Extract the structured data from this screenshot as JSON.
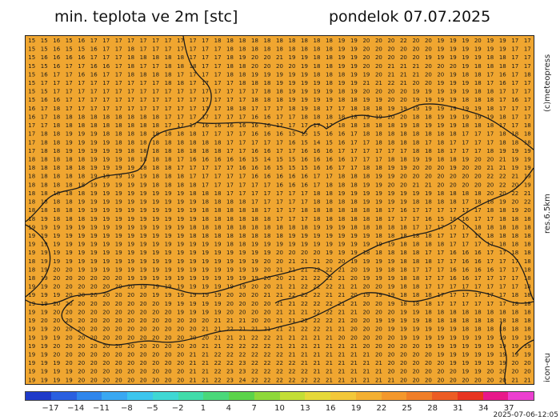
{
  "header": {
    "title_left": "min. teplota ve 2m [stc]",
    "title_right": "pondelok 07.07.2025"
  },
  "side_labels": {
    "credit": "(c)meteopress",
    "resolution": "res.6.5km",
    "model": "icon-eu"
  },
  "timestamp": "2025-07-06-12:05",
  "colors": {
    "map_background": "#f0a630",
    "grid_text": "#1a1a1a",
    "border_line": "#1a1a1a"
  },
  "scale": {
    "ticks": [
      "−17",
      "−14",
      "−11",
      "−8",
      "−5",
      "−2",
      "1",
      "4",
      "7",
      "10",
      "13",
      "16",
      "19",
      "22",
      "25",
      "28",
      "31",
      "34",
      "37"
    ],
    "colors": [
      "#1e3ac9",
      "#2a5fe0",
      "#2f86ec",
      "#39a8f2",
      "#3cc6ee",
      "#3fd8d4",
      "#41dcaa",
      "#4ad87a",
      "#5bd34a",
      "#8ed83a",
      "#c3de36",
      "#e6d93a",
      "#f3c83a",
      "#f4b032",
      "#f4982c",
      "#f07e28",
      "#ec5c24",
      "#e83420",
      "#e8188a",
      "#ec3fd0"
    ]
  },
  "map_grid": [
    "15 15 16 15 16 17 17 17 17 17 17 17 17 17 17 18 18 18 18 18 18 18 18 18 18 19 19 20 20 20 22 20 20 19 19 19 20 19 19 17 17",
    "15 15 16 15 15 16 17 17 18 17 17 17 17 17 17 17 18 18 18 18 18 18 18 18 18 19 19 20 20 20 20 20 20 19 19 19 19 19 19 17 17",
    "15 16 16 16 16 17 17 17 18 18 18 18 18 17 17 17 18 19 20 20 21 19 19 18 18 19 19 20 20 20 20 20 19 19 19 19 19 18 18 17 17",
    "15 15 16 17 17 16 16 17 18 17 17 18 18 18 17 17 18 18 20 20 20 20 19 18 18 19 19 20 20 21 21 21 20 20 20 19 18 18 18 17 17",
    "15 16 17 17 16 16 17 17 18 18 18 18 17 17 17 17 18 18 19 19 19 19 19 18 18 18 19 19 20 21 21 21 20 20 19 18 18 17 16 17 18",
    "15 17 17 17 17 17 17 17 17 17 17 18 18 17 17 17 17 18 18 18 19 19 19 19 18 19 19 21 21 22 21 20 20 19 19 19 18 17 16 17 17",
    "15 15 17 17 17 17 17 17 17 17 17 17 17 17 17 17 17 17 17 18 18 19 19 19 19 18 19 20 20 20 20 19 19 19 19 19 18 18 17 17 17",
    "15 16 16 17 17 17 17 17 17 17 17 17 17 17 17 17 17 17 18 18 18 19 19 19 19 18 18 19 19 20 20 19 19 19 19 18 18 18 17 16 17",
    "16 17 18 17 17 17 17 17 17 17 17 17 17 17 17 17 18 18 17 17 17 18 19 18 17 17 18 18 18 19 19 19 19 19 19 19 19 18 17 17 17",
    "16 17 18 18 18 18 18 18 18 18 18 17 17 17 17 17 17 17 16 16 17 17 18 18 18 18 18 19 19 20 20 18 18 19 19 19 19 19 18 17 17",
    "17 17 18 18 18 18 18 18 18 18 18 17 17 17 16 16 16 16 16 16 17 17 17 17 17 18 18 18 18 18 19 18 19 19 19 18 18 18 17 17 18",
    "17 18 18 19 19 19 18 18 18 18 18 18 18 18 17 17 17 17 16 16 16 15 15 15 16 16 17 18 18 18 18 18 18 18 18 17 17 17 18 18 18",
    "17 18 18 19 19 19 19 18 18 18 18 18 18 18 18 18 17 17 17 17 17 16 15 14 15 16 17 17 18 18 18 18 17 18 17 17 17 17 18 18 18",
    "17 18 18 19 19 19 19 19 18 18 18 18 18 18 18 18 17 17 16 16 17 17 16 16 16 17 17 17 17 17 17 18 18 18 17 17 17 18 19 19 19",
    "18 18 18 18 18 19 19 19 18 18 18 18 17 16 16 16 16 16 15 14 15 15 16 16 16 16 17 17 17 18 18 19 19 18 18 19 20 20 21 19 19",
    "18 18 18 18 18 19 19 19 19 18 18 18 17 17 17 17 17 16 16 16 15 15 15 16 16 17 17 18 18 19 19 20 20 20 19 20 20 21 21 19 19",
    "18 18 18 18 18 19 19 19 19 19 18 18 18 17 17 17 17 17 16 16 16 16 16 17 17 18 18 18 19 19 20 20 20 20 20 20 20 22 22 21 19",
    "18 18 18 18 18 19 19 19 19 19 18 18 18 18 17 17 17 17 17 17 16 16 16 17 18 18 18 19 19 20 20 21 21 20 20 20 20 20 22 20 19",
    "18 18 18 18 18 19 19 19 19 19 19 19 19 18 18 18 17 17 17 17 17 17 17 18 18 19 19 19 19 19 19 19 19 18 18 18 18 20 20 22 21",
    "18 18 18 18 19 19 19 19 19 19 19 19 19 19 18 18 18 18 17 17 17 17 17 18 18 18 18 19 19 19 19 18 18 18 18 17 18 18 19 20 22",
    "18 18 18 18 19 19 19 19 19 19 19 19 19 19 18 18 18 18 18 17 17 17 18 18 18 18 18 18 18 17 16 17 17 17 17 17 17 18 18 19 20",
    "18 19 18 18 18 19 19 19 19 19 19 19 19 19 18 18 18 18 18 18 17 17 17 18 18 18 18 18 18 17 17 17 16 15 16 16 17 17 18 18 18",
    "19 19 19 19 19 19 19 19 19 19 19 19 19 18 18 18 18 18 18 18 18 18 18 19 19 19 18 18 18 18 18 17 17 17 17 17 18 18 18 18 18",
    "19 19 19 19 19 19 19 19 19 19 19 19 19 18 18 18 18 18 18 18 18 19 19 19 19 19 19 19 18 18 18 18 18 17 17 17 17 18 18 18 18",
    "19 19 19 19 19 19 19 19 19 19 19 19 19 19 19 19 18 18 19 19 19 19 19 19 19 19 19 19 19 19 18 18 18 18 17 17 17 17 18 18 18",
    "19 19 19 19 19 19 19 19 19 19 19 19 19 19 19 19 19 19 19 19 20 20 20 20 19 19 19 18 18 18 18 18 17 17 16 16 16 17 17 18 18",
    "18 19 19 19 19 19 19 19 19 19 19 19 19 19 19 19 19 19 19 20 20 21 21 21 20 20 19 19 19 19 18 18 18 17 17 16 16 17 17 17 18",
    "18 19 20 20 19 19 19 19 19 19 19 19 19 19 19 19 19 19 19 20 21 21 21 22 22 21 20 19 19 18 18 17 17 17 16 16 16 16 17 17 18",
    "18 19 20 20 20 20 20 20 19 19 19 19 19 19 19 19 19 19 19 20 20 21 21 22 22 21 20 19 19 19 18 18 17 17 16 16 17 17 17 17 18",
    "19 19 20 20 20 20 20 20 20 19 19 19 19 19 19 19 19 19 20 20 21 21 22 22 22 21 21 20 20 19 18 18 17 17 17 17 17 17 17 17 18",
    "19 19 19 20 20 20 20 20 20 20 19 19 19 19 19 19 20 20 20 21 21 22 22 22 21 21 20 19 19 19 18 18 18 17 17 17 17 17 17 18 18",
    "19 19 20 20 20 20 20 20 20 20 20 19 19 19 19 19 20 20 20 20 21 21 22 22 22 21 21 20 20 19 18 18 18 17 17 17 17 17 17 18 18",
    "19 19 20 20 20 20 20 20 20 20 20 20 19 19 19 19 20 20 20 20 21 21 21 22 22 21 21 20 20 20 19 19 18 18 18 18 18 18 18 18 18",
    "19 20 20 20 20 20 20 20 20 20 20 20 20 20 20 21 21 21 20 20 21 21 22 22 22 21 20 20 19 19 19 19 18 18 18 18 18 18 18 18 18",
    "19 19 20 20 20 20 20 20 20 20 20 20 20 20 21 21 22 21 21 21 21 21 22 22 21 21 20 20 20 19 19 19 19 19 19 18 18 18 18 18 18",
    "19 19 19 20 20 20 20 20 20 20 20 20 20 20 20 21 21 21 22 22 21 21 21 21 21 20 20 20 20 20 19 19 19 19 19 19 19 19 19 19 19",
    "19 19 20 20 20 20 20 20 20 20 20 20 20 20 21 21 22 22 22 22 21 21 21 21 21 21 21 20 20 20 20 20 19 19 19 19 19 19 19 19 19",
    "19 19 20 20 20 20 20 20 20 20 20 20 20 21 21 22 22 22 22 22 22 21 21 21 21 21 21 21 20 20 20 20 20 19 19 19 19 19 19 19 19",
    "19 19 19 20 20 20 20 20 20 20 20 20 20 21 21 22 22 23 22 22 22 22 21 21 21 21 21 21 21 20 20 20 20 20 19 19 19 19 19 20 20",
    "19 19 19 19 20 20 20 20 20 20 20 20 20 21 21 22 23 23 22 22 22 22 22 21 21 21 21 21 21 20 20 20 20 20 20 19 19 20 20 20 20",
    "19 19 19 19 20 20 20 20 20 20 20 20 20 21 21 22 23 24 22 22 22 22 22 22 21 21 21 21 21 21 20 20 20 20 20 20 20 20 20 21 21"
  ]
}
